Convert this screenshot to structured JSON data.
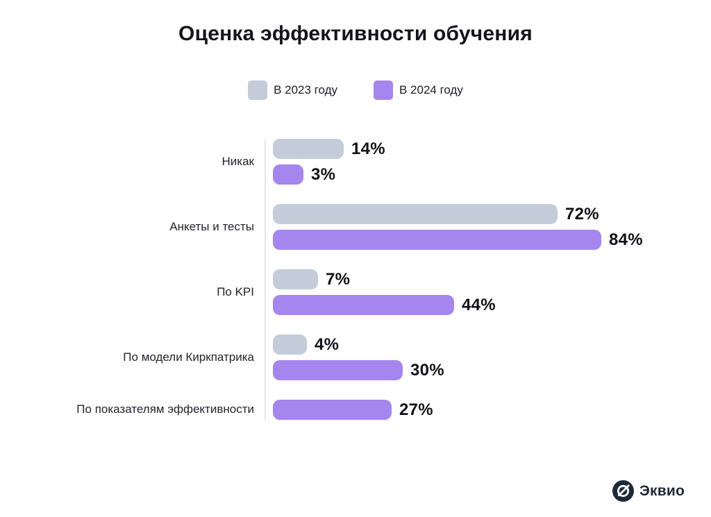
{
  "page": {
    "background": "#ffffff"
  },
  "chart_data": {
    "type": "bar",
    "orientation": "horizontal",
    "title": "Оценка эффективности обучения",
    "categories": [
      "Никак",
      "Анкеты и тесты",
      "По KPI",
      "По модели Киркпатрика",
      "По показателям эффективности"
    ],
    "series": [
      {
        "name": "В 2023 году",
        "color": "#c4ccd9",
        "values": [
          14,
          72,
          7,
          4,
          null
        ]
      },
      {
        "name": "В 2024 году",
        "color": "#a585ee",
        "values": [
          3,
          84,
          44,
          30,
          27
        ]
      }
    ],
    "value_suffix": "%",
    "value_labels": "end-of-bar",
    "legend_position": "top",
    "grid": false,
    "axis_ticks_visible": false
  },
  "footer": {
    "logo_text": "Эквио"
  },
  "colors": {
    "text_dark": "#14141c",
    "axis_line": "#e4e4ea",
    "logo_navy": "#1d2939",
    "bar_2023": "#c4ccd9",
    "bar_2024": "#a585ee"
  }
}
